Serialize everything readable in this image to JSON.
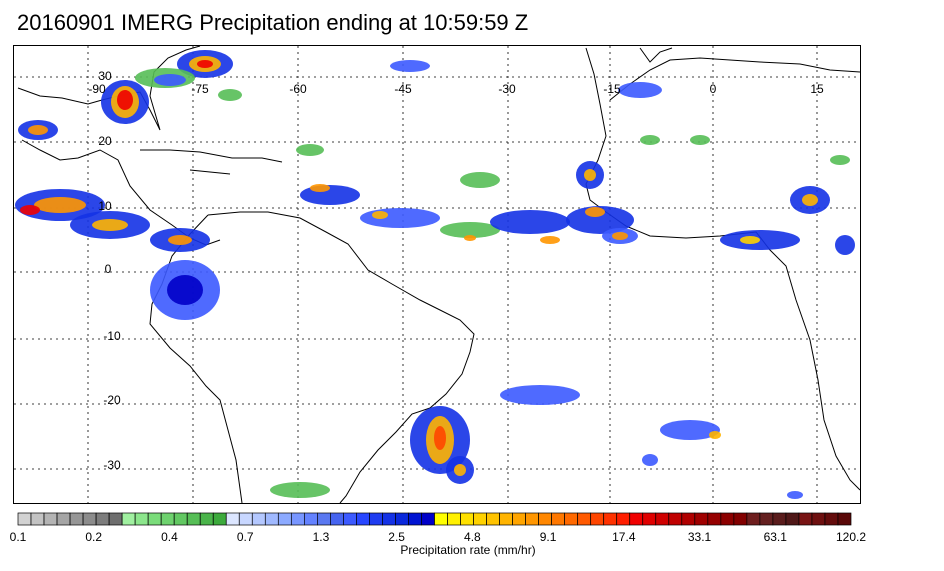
{
  "title": "20160901 IMERG Precipitation ending at 10:59:59 Z",
  "map": {
    "lon_labels": [
      "-90",
      "-75",
      "-60",
      "-45",
      "-30",
      "-15",
      "0",
      "15"
    ],
    "lat_labels": [
      "30",
      "20",
      "10",
      "0",
      "-10",
      "-20",
      "-30"
    ]
  },
  "colorbar": {
    "label": "Precipitation rate (mm/hr)",
    "tick_labels": [
      "0.1",
      "0.2",
      "0.4",
      "0.7",
      "1.3",
      "2.5",
      "4.8",
      "9.1",
      "17.4",
      "33.1",
      "63.1",
      "120.2"
    ],
    "colors": [
      "#d2d2d2",
      "#c3c3c3",
      "#b4b4b4",
      "#a5a5a5",
      "#969696",
      "#8c8c8c",
      "#7d7d7d",
      "#6e6e6e",
      "#a0f0a0",
      "#8ce68c",
      "#7adc7a",
      "#6ed26e",
      "#62c862",
      "#56be56",
      "#4ab44a",
      "#3caa3c",
      "#dce6ff",
      "#c8d7ff",
      "#b4c8ff",
      "#a0b9ff",
      "#8caaff",
      "#7896ff",
      "#6482ff",
      "#5a78f0",
      "#4664f0",
      "#3c5aff",
      "#2846ff",
      "#1e3cf0",
      "#1432e6",
      "#0a28dc",
      "#0014d2",
      "#0000c8",
      "#ffff00",
      "#fff000",
      "#ffe100",
      "#ffd200",
      "#ffc300",
      "#ffb400",
      "#ffa500",
      "#ff9600",
      "#ff8700",
      "#ff7800",
      "#ff6900",
      "#ff5a00",
      "#ff4600",
      "#ff3200",
      "#ff1e00",
      "#f00000",
      "#e00000",
      "#d00000",
      "#c00000",
      "#b00000",
      "#a00000",
      "#960000",
      "#8c0000",
      "#820000",
      "#6e1e1e",
      "#642020",
      "#5a1c1c",
      "#501818",
      "#781414",
      "#6e1010",
      "#640c0c",
      "#5a0808"
    ]
  }
}
